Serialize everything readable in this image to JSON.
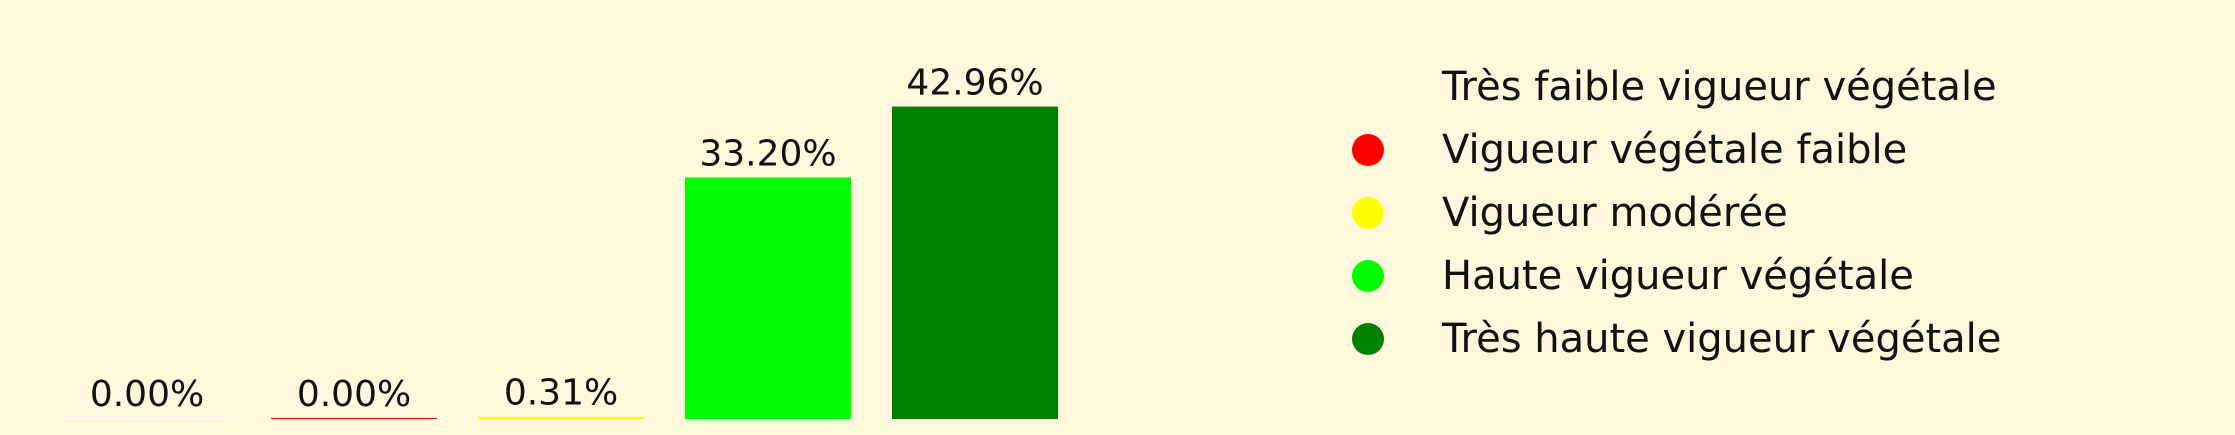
{
  "chart_data": {
    "type": "bar",
    "categories": [
      "Très faible vigueur végétale",
      "Vigueur végétale faible",
      "Vigueur modérée",
      "Haute vigueur végétale",
      "Très haute vigueur végétale"
    ],
    "values": [
      0.0,
      0.0,
      0.31,
      33.2,
      42.96
    ],
    "value_labels": [
      "0.00%",
      "0.00%",
      "0.31%",
      "33.20%",
      "42.96%"
    ],
    "colors": [
      "#ffffff",
      "#ff0000",
      "#ffff00",
      "#00ff00",
      "#008000"
    ],
    "ylim": [
      0,
      55
    ],
    "grid": false,
    "legend_position": "right"
  },
  "legend": {
    "items": [
      {
        "label": "Très faible vigueur végétale",
        "color": "#fff8dc"
      },
      {
        "label": "Vigueur végétale faible",
        "color": "#ff0000"
      },
      {
        "label": "Vigueur modérée",
        "color": "#ffff00"
      },
      {
        "label": "Haute vigueur végétale",
        "color": "#00ff00"
      },
      {
        "label": "Très haute vigueur végétale",
        "color": "#008000"
      }
    ]
  },
  "background_color": "#fff8dc"
}
